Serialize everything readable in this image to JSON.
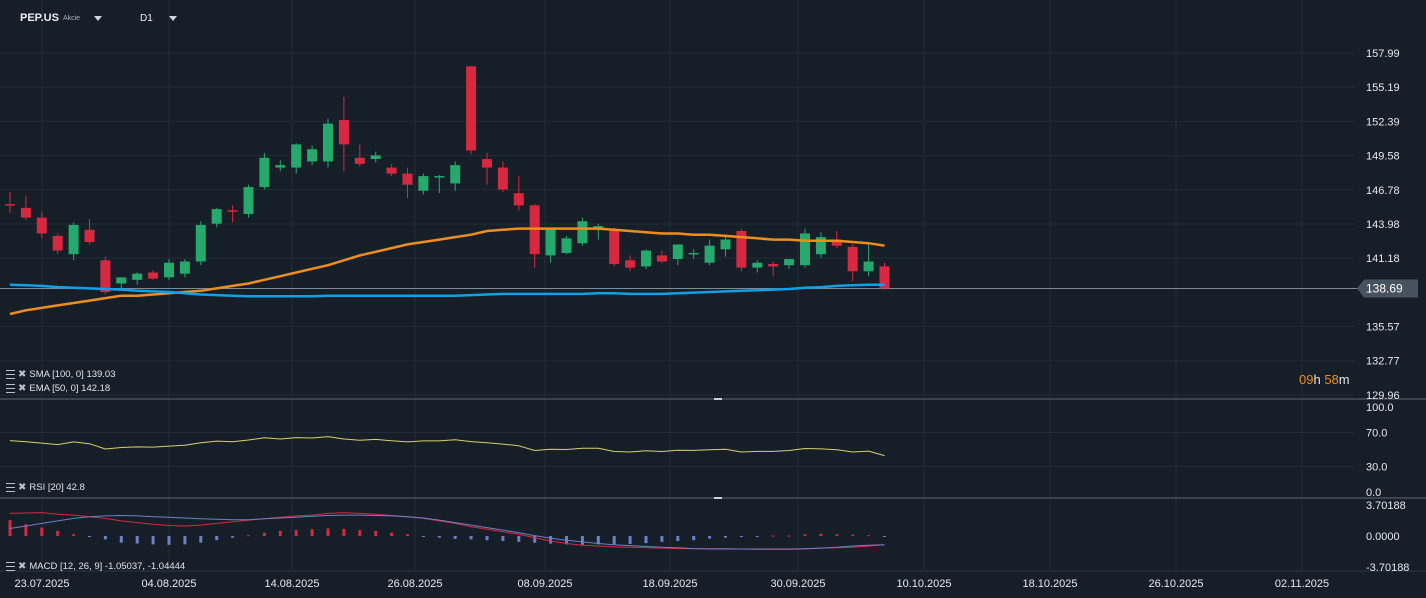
{
  "header": {
    "symbol": "PEP.US",
    "asset_type": "Akcie",
    "timeframe": "D1"
  },
  "countdown": {
    "hours": "09",
    "h_unit": "h",
    "minutes": "58",
    "m_unit": "m"
  },
  "indicators": {
    "sma": {
      "label": "SMA [100, 0]",
      "value": "139.03"
    },
    "ema": {
      "label": "EMA [50, 0]",
      "value": "142.18"
    },
    "rsi": {
      "label": "RSI [20]",
      "value": "42.8"
    },
    "macd": {
      "label": "MACD [12, 26, 9]",
      "value1": "-1.05037,",
      "value2": "-1.04444"
    }
  },
  "colors": {
    "background": "#161f28",
    "up": "#26a96c",
    "down": "#d8283f",
    "ema": "#ef8d1c",
    "sma": "#0ea0e8",
    "rsi": "#d9cf67",
    "macd": "#d8283f",
    "signal": "#6d7fc9",
    "grid": "#212c36"
  },
  "chart_data": [
    {
      "type": "candlestick",
      "panel": "price",
      "ylim": [
        129.96,
        157.99
      ],
      "y_ticks": [
        "157.99",
        "155.19",
        "152.39",
        "149.58",
        "146.78",
        "143.98",
        "141.18",
        "138.69",
        "135.57",
        "132.77",
        "129.96"
      ],
      "current_price": "138.69",
      "x_ticks": [
        "23.07.2025",
        "04.08.2025",
        "14.08.2025",
        "26.08.2025",
        "08.09.2025",
        "18.09.2025",
        "30.09.2025",
        "10.10.2025",
        "18.10.2025",
        "26.10.2025",
        "02.11.2025"
      ],
      "candles": [
        {
          "o": 145.6,
          "h": 146.6,
          "l": 144.9,
          "c": 145.5
        },
        {
          "o": 145.3,
          "h": 146.3,
          "l": 144.3,
          "c": 144.5
        },
        {
          "o": 144.5,
          "h": 145.0,
          "l": 142.8,
          "c": 143.2
        },
        {
          "o": 143.0,
          "h": 143.2,
          "l": 141.5,
          "c": 141.8
        },
        {
          "o": 141.5,
          "h": 144.1,
          "l": 141.0,
          "c": 143.9
        },
        {
          "o": 143.5,
          "h": 144.4,
          "l": 142.3,
          "c": 142.5
        },
        {
          "o": 141.0,
          "h": 141.3,
          "l": 138.2,
          "c": 138.4
        },
        {
          "o": 139.1,
          "h": 139.6,
          "l": 138.6,
          "c": 139.6
        },
        {
          "o": 139.4,
          "h": 140.0,
          "l": 139.0,
          "c": 139.9
        },
        {
          "o": 140.0,
          "h": 140.2,
          "l": 139.4,
          "c": 139.5
        },
        {
          "o": 139.6,
          "h": 141.1,
          "l": 139.4,
          "c": 140.8
        },
        {
          "o": 139.9,
          "h": 141.1,
          "l": 139.6,
          "c": 140.9
        },
        {
          "o": 140.9,
          "h": 144.2,
          "l": 140.6,
          "c": 143.9
        },
        {
          "o": 144.0,
          "h": 145.3,
          "l": 143.7,
          "c": 145.2
        },
        {
          "o": 145.1,
          "h": 145.5,
          "l": 144.1,
          "c": 145.0
        },
        {
          "o": 144.8,
          "h": 147.2,
          "l": 144.5,
          "c": 147.0
        },
        {
          "o": 147.0,
          "h": 149.8,
          "l": 146.8,
          "c": 149.4
        },
        {
          "o": 148.6,
          "h": 149.2,
          "l": 148.3,
          "c": 148.8
        },
        {
          "o": 148.6,
          "h": 150.6,
          "l": 148.1,
          "c": 150.5
        },
        {
          "o": 149.1,
          "h": 150.4,
          "l": 148.8,
          "c": 150.1
        },
        {
          "o": 149.1,
          "h": 152.6,
          "l": 148.6,
          "c": 152.2
        },
        {
          "o": 152.5,
          "h": 154.4,
          "l": 148.3,
          "c": 150.5
        },
        {
          "o": 149.4,
          "h": 150.5,
          "l": 148.7,
          "c": 148.9
        },
        {
          "o": 149.3,
          "h": 149.9,
          "l": 149.0,
          "c": 149.6
        },
        {
          "o": 148.6,
          "h": 148.9,
          "l": 147.9,
          "c": 148.1
        },
        {
          "o": 148.1,
          "h": 148.6,
          "l": 146.1,
          "c": 147.2
        },
        {
          "o": 146.7,
          "h": 148.1,
          "l": 146.4,
          "c": 147.9
        },
        {
          "o": 147.9,
          "h": 148.0,
          "l": 146.5,
          "c": 147.9
        },
        {
          "o": 147.3,
          "h": 149.1,
          "l": 146.7,
          "c": 148.8
        },
        {
          "o": 156.9,
          "h": 156.9,
          "l": 149.7,
          "c": 150.0
        },
        {
          "o": 149.3,
          "h": 149.8,
          "l": 147.2,
          "c": 148.6
        },
        {
          "o": 148.6,
          "h": 149.1,
          "l": 146.6,
          "c": 146.8
        },
        {
          "o": 146.5,
          "h": 147.9,
          "l": 145.1,
          "c": 145.5
        },
        {
          "o": 145.5,
          "h": 145.6,
          "l": 140.4,
          "c": 141.5
        },
        {
          "o": 141.4,
          "h": 143.7,
          "l": 140.8,
          "c": 143.6
        },
        {
          "o": 141.6,
          "h": 143.0,
          "l": 141.5,
          "c": 142.8
        },
        {
          "o": 142.4,
          "h": 144.5,
          "l": 142.2,
          "c": 144.2
        },
        {
          "o": 143.6,
          "h": 144.0,
          "l": 142.7,
          "c": 143.8
        },
        {
          "o": 143.5,
          "h": 143.7,
          "l": 140.5,
          "c": 140.7
        },
        {
          "o": 141.0,
          "h": 141.4,
          "l": 140.1,
          "c": 140.4
        },
        {
          "o": 140.5,
          "h": 141.9,
          "l": 140.3,
          "c": 141.8
        },
        {
          "o": 141.4,
          "h": 141.8,
          "l": 140.8,
          "c": 140.9
        },
        {
          "o": 141.1,
          "h": 142.3,
          "l": 140.6,
          "c": 142.3
        },
        {
          "o": 141.5,
          "h": 141.9,
          "l": 141.1,
          "c": 141.6
        },
        {
          "o": 140.8,
          "h": 142.7,
          "l": 140.6,
          "c": 142.2
        },
        {
          "o": 141.9,
          "h": 142.9,
          "l": 141.3,
          "c": 142.7
        },
        {
          "o": 143.4,
          "h": 143.6,
          "l": 140.1,
          "c": 140.4
        },
        {
          "o": 140.4,
          "h": 141.0,
          "l": 140.0,
          "c": 140.8
        },
        {
          "o": 140.7,
          "h": 140.9,
          "l": 139.7,
          "c": 140.5
        },
        {
          "o": 140.6,
          "h": 141.0,
          "l": 140.3,
          "c": 141.1
        },
        {
          "o": 140.6,
          "h": 143.6,
          "l": 140.4,
          "c": 143.2
        },
        {
          "o": 141.5,
          "h": 143.3,
          "l": 141.2,
          "c": 142.9
        },
        {
          "o": 142.7,
          "h": 143.4,
          "l": 142.0,
          "c": 142.2
        },
        {
          "o": 142.1,
          "h": 142.3,
          "l": 139.3,
          "c": 140.1
        },
        {
          "o": 140.1,
          "h": 142.3,
          "l": 139.7,
          "c": 140.9
        },
        {
          "o": 140.5,
          "h": 140.8,
          "l": 138.6,
          "c": 138.7
        }
      ],
      "series": [
        {
          "name": "EMA [50, 0]",
          "values": [
            136.6,
            136.9,
            137.1,
            137.3,
            137.5,
            137.7,
            137.9,
            138.1,
            138.1,
            138.2,
            138.3,
            138.4,
            138.5,
            138.7,
            138.9,
            139.1,
            139.4,
            139.7,
            140.0,
            140.3,
            140.6,
            141.0,
            141.4,
            141.7,
            142.0,
            142.3,
            142.5,
            142.7,
            142.9,
            143.1,
            143.4,
            143.5,
            143.6,
            143.6,
            143.6,
            143.6,
            143.6,
            143.6,
            143.5,
            143.4,
            143.3,
            143.2,
            143.2,
            143.1,
            143.1,
            143.0,
            142.9,
            142.8,
            142.7,
            142.7,
            142.6,
            142.6,
            142.6,
            142.5,
            142.4,
            142.2
          ]
        },
        {
          "name": "SMA [100, 0]",
          "values": [
            139.0,
            138.95,
            138.9,
            138.8,
            138.75,
            138.7,
            138.65,
            138.6,
            138.5,
            138.45,
            138.4,
            138.3,
            138.2,
            138.15,
            138.1,
            138.05,
            138.05,
            138.05,
            138.05,
            138.05,
            138.1,
            138.1,
            138.1,
            138.1,
            138.1,
            138.1,
            138.1,
            138.1,
            138.1,
            138.15,
            138.2,
            138.25,
            138.25,
            138.25,
            138.25,
            138.25,
            138.25,
            138.3,
            138.3,
            138.25,
            138.25,
            138.25,
            138.3,
            138.35,
            138.4,
            138.45,
            138.5,
            138.55,
            138.6,
            138.65,
            138.75,
            138.8,
            138.9,
            138.95,
            139.0,
            139.0
          ]
        }
      ]
    },
    {
      "type": "line",
      "panel": "rsi",
      "ylim": [
        0.0,
        100.0
      ],
      "y_ticks": [
        "100.0",
        "70.0",
        "30.0",
        "0.0"
      ],
      "series": [
        {
          "name": "RSI [20]",
          "values": [
            60.5,
            59.2,
            57.5,
            55.8,
            58.9,
            56.8,
            50.6,
            52.3,
            53.1,
            52.8,
            54.0,
            54.9,
            58.0,
            59.9,
            59.2,
            61.2,
            63.8,
            62.4,
            64.0,
            63.5,
            65.2,
            62.3,
            60.9,
            61.9,
            60.3,
            59.0,
            60.1,
            60.1,
            61.4,
            59.3,
            57.9,
            56.4,
            54.4,
            48.8,
            50.3,
            50.0,
            51.5,
            51.4,
            47.6,
            47.1,
            48.5,
            47.6,
            49.1,
            48.9,
            49.8,
            50.4,
            47.1,
            47.8,
            47.8,
            48.8,
            51.2,
            50.7,
            49.6,
            47.1,
            48.1,
            42.8
          ]
        }
      ]
    },
    {
      "type": "bar+line",
      "panel": "macd",
      "ylim": [
        -3.70188,
        3.70188
      ],
      "y_ticks": [
        "3.70188",
        "0.0000",
        "-3.70188"
      ],
      "histogram": [
        1.9,
        1.4,
        1.0,
        0.6,
        0.2,
        -0.1,
        -0.4,
        -0.8,
        -0.9,
        -1.0,
        -1.05,
        -1.0,
        -0.8,
        -0.5,
        -0.2,
        0.1,
        0.4,
        0.6,
        0.7,
        0.8,
        0.9,
        0.85,
        0.7,
        0.6,
        0.4,
        0.2,
        -0.1,
        -0.2,
        -0.35,
        -0.4,
        -0.5,
        -0.6,
        -0.7,
        -0.8,
        -0.9,
        -1.0,
        -1.05,
        -1.0,
        -1.0,
        -0.95,
        -0.85,
        -0.7,
        -0.6,
        -0.5,
        -0.3,
        -0.2,
        -0.1,
        -0.05,
        0.05,
        0.05,
        0.2,
        0.25,
        0.2,
        0.15,
        0.1,
        -0.05
      ],
      "series": [
        {
          "name": "MACD",
          "values": [
            2.7,
            2.75,
            2.8,
            2.6,
            2.5,
            2.3,
            2.1,
            1.8,
            1.6,
            1.4,
            1.25,
            1.2,
            1.3,
            1.5,
            1.7,
            1.9,
            2.05,
            2.25,
            2.4,
            2.5,
            2.7,
            2.8,
            2.7,
            2.6,
            2.45,
            2.3,
            2.1,
            1.8,
            1.5,
            1.1,
            0.8,
            0.5,
            0.2,
            -0.2,
            -0.6,
            -0.9,
            -1.1,
            -1.2,
            -1.3,
            -1.35,
            -1.4,
            -1.45,
            -1.5,
            -1.5,
            -1.5,
            -1.5,
            -1.55,
            -1.6,
            -1.6,
            -1.6,
            -1.55,
            -1.45,
            -1.4,
            -1.35,
            -1.2,
            -1.05
          ]
        },
        {
          "name": "Signal",
          "values": [
            0.9,
            1.2,
            1.5,
            1.8,
            2.1,
            2.3,
            2.4,
            2.45,
            2.4,
            2.3,
            2.25,
            2.15,
            2.05,
            2.0,
            1.95,
            1.95,
            2.05,
            2.15,
            2.25,
            2.35,
            2.45,
            2.5,
            2.5,
            2.45,
            2.4,
            2.3,
            2.15,
            1.9,
            1.6,
            1.3,
            1.0,
            0.7,
            0.4,
            0.05,
            -0.25,
            -0.5,
            -0.7,
            -0.9,
            -1.05,
            -1.15,
            -1.25,
            -1.35,
            -1.4,
            -1.5,
            -1.55,
            -1.55,
            -1.55,
            -1.55,
            -1.55,
            -1.55,
            -1.5,
            -1.45,
            -1.35,
            -1.2,
            -1.1,
            -1.04
          ]
        }
      ]
    }
  ]
}
